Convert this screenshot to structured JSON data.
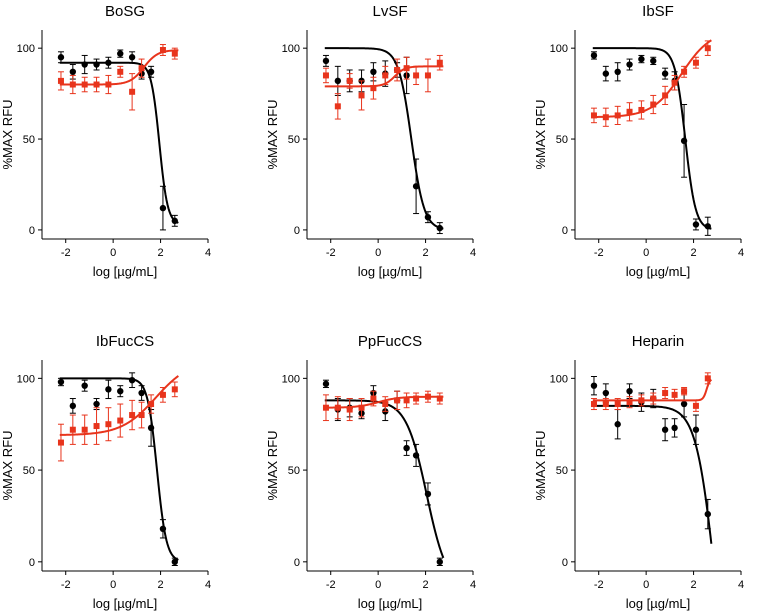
{
  "figure": {
    "colors": {
      "black": "#000000",
      "red": "#e8341c"
    },
    "x_ticks": [
      "-2",
      "0",
      "2",
      "4"
    ],
    "y_ticks": [
      "0",
      "50",
      "100"
    ]
  },
  "chart_data": [
    {
      "type": "scatter",
      "title": "BoSG",
      "xlabel": "log [µg/mL]",
      "ylabel": "%MAX RFU",
      "xlim": [
        -3,
        4
      ],
      "ylim": [
        -5,
        110
      ],
      "series": [
        {
          "color": "#000000",
          "marker": "circle",
          "x": [
            -2.2,
            -1.7,
            -1.2,
            -0.7,
            -0.2,
            0.3,
            0.8,
            1.2,
            1.6,
            2.1,
            2.6
          ],
          "y": [
            95,
            87,
            91,
            91,
            92,
            97,
            95,
            86,
            87,
            12,
            5
          ],
          "err": [
            3,
            4,
            5,
            3,
            3,
            2,
            3,
            3,
            3,
            12,
            3
          ],
          "fit": {
            "top": 92,
            "bottom": 3,
            "ec50": 1.95,
            "hill": 2.5
          }
        },
        {
          "color": "#e8341c",
          "marker": "square",
          "x": [
            -2.2,
            -1.7,
            -1.2,
            -0.7,
            -0.2,
            0.3,
            0.8,
            1.2,
            2.1,
            2.6
          ],
          "y": [
            82,
            80,
            80,
            80,
            80,
            87,
            76,
            89,
            99,
            97
          ],
          "err": [
            5,
            5,
            4,
            4,
            5,
            3,
            10,
            5,
            3,
            3
          ],
          "fit": {
            "top": 99,
            "bottom": 80,
            "ec50": 1.3,
            "hill": 1.5
          }
        }
      ]
    },
    {
      "type": "scatter",
      "title": "LvSF",
      "xlabel": "log [µg/mL]",
      "ylabel": "%MAX RFU",
      "xlim": [
        -3,
        4
      ],
      "ylim": [
        -5,
        110
      ],
      "series": [
        {
          "color": "#000000",
          "marker": "circle",
          "x": [
            -2.2,
            -1.7,
            -1.2,
            -0.7,
            -0.2,
            0.3,
            0.8,
            1.2,
            1.6,
            2.1,
            2.6
          ],
          "y": [
            93,
            82,
            82,
            82,
            87,
            86,
            88,
            85,
            24,
            7,
            1
          ],
          "err": [
            3,
            8,
            6,
            6,
            5,
            7,
            4,
            10,
            15,
            3,
            3
          ],
          "fit": {
            "top": 100,
            "bottom": 0,
            "ec50": 1.4,
            "hill": 1.6
          }
        },
        {
          "color": "#e8341c",
          "marker": "square",
          "x": [
            -2.2,
            -1.7,
            -1.2,
            -0.7,
            -0.2,
            0.3,
            0.8,
            1.2,
            1.6,
            2.1,
            2.6
          ],
          "y": [
            85,
            68,
            82,
            74,
            78,
            85,
            88,
            89,
            85,
            85,
            92
          ],
          "err": [
            4,
            7,
            4,
            8,
            6,
            5,
            6,
            6,
            5,
            9,
            4
          ],
          "fit": {
            "top": 90,
            "bottom": 79,
            "ec50": 0.7,
            "hill": 2
          }
        }
      ]
    },
    {
      "type": "scatter",
      "title": "IbSF",
      "xlabel": "log [µg/mL]",
      "ylabel": "%MAX RFU",
      "xlim": [
        -3,
        4
      ],
      "ylim": [
        -5,
        110
      ],
      "series": [
        {
          "color": "#000000",
          "marker": "circle",
          "x": [
            -2.2,
            -1.7,
            -1.2,
            -0.7,
            -0.2,
            0.3,
            0.8,
            1.2,
            1.6,
            2.1,
            2.6
          ],
          "y": [
            96,
            86,
            87,
            91,
            94,
            93,
            86,
            82,
            49,
            3,
            2
          ],
          "err": [
            2,
            4,
            5,
            3,
            2,
            2,
            3,
            5,
            20,
            3,
            5
          ],
          "fit": {
            "top": 100,
            "bottom": 0,
            "ec50": 1.65,
            "hill": 2
          }
        },
        {
          "color": "#e8341c",
          "marker": "square",
          "x": [
            -2.2,
            -1.7,
            -1.2,
            -0.7,
            -0.2,
            0.3,
            0.8,
            1.2,
            1.6,
            2.1,
            2.6
          ],
          "y": [
            63,
            62,
            63,
            65,
            66,
            69,
            74,
            81,
            87,
            92,
            100
          ],
          "err": [
            4,
            5,
            5,
            5,
            5,
            5,
            5,
            4,
            3,
            3,
            4
          ],
          "fit": {
            "top": 110,
            "bottom": 62,
            "ec50": 1.5,
            "hill": 0.7
          }
        }
      ]
    },
    {
      "type": "scatter",
      "title": "IbFucCS",
      "xlabel": "log [µg/mL]",
      "ylabel": "%MAX RFU",
      "xlim": [
        -3,
        4
      ],
      "ylim": [
        -5,
        110
      ],
      "series": [
        {
          "color": "#000000",
          "marker": "circle",
          "x": [
            -2.2,
            -1.7,
            -1.2,
            -0.7,
            -0.2,
            0.3,
            0.8,
            1.2,
            1.6,
            2.1,
            2.6
          ],
          "y": [
            98,
            85,
            96,
            86,
            94,
            93,
            99,
            92,
            73,
            18,
            0
          ],
          "err": [
            2,
            4,
            3,
            3,
            5,
            3,
            4,
            4,
            10,
            5,
            2
          ],
          "fit": {
            "top": 100,
            "bottom": 0,
            "ec50": 1.85,
            "hill": 2.2
          }
        },
        {
          "color": "#e8341c",
          "marker": "square",
          "x": [
            -2.2,
            -1.7,
            -1.2,
            -0.7,
            -0.2,
            0.3,
            0.8,
            1.2,
            1.6,
            2.1,
            2.6
          ],
          "y": [
            65,
            72,
            72,
            74,
            75,
            77,
            80,
            80,
            86,
            91,
            94
          ],
          "err": [
            10,
            8,
            8,
            10,
            9,
            9,
            8,
            7,
            5,
            4,
            4
          ],
          "fit": {
            "top": 110,
            "bottom": 69,
            "ec50": 1.8,
            "hill": 0.6
          }
        }
      ]
    },
    {
      "type": "scatter",
      "title": "PpFucCS",
      "xlabel": "log [µg/mL]",
      "ylabel": "%MAX RFU",
      "xlim": [
        -3,
        4
      ],
      "ylim": [
        -5,
        110
      ],
      "series": [
        {
          "color": "#000000",
          "marker": "circle",
          "x": [
            -2.2,
            -1.7,
            -1.2,
            -0.7,
            -0.2,
            0.3,
            0.8,
            1.2,
            1.6,
            2.1,
            2.6
          ],
          "y": [
            97,
            83,
            84,
            81,
            92,
            82,
            88,
            62,
            58,
            37,
            0
          ],
          "err": [
            2,
            6,
            5,
            3,
            4,
            5,
            5,
            4,
            6,
            6,
            2
          ],
          "fit": {
            "top": 88,
            "bottom": -15,
            "ec50": 2.05,
            "hill": 1
          }
        },
        {
          "color": "#e8341c",
          "marker": "square",
          "x": [
            -2.2,
            -1.7,
            -1.2,
            -0.7,
            -0.2,
            0.3,
            0.8,
            1.2,
            1.6,
            2.1,
            2.6
          ],
          "y": [
            84,
            84,
            83,
            84,
            89,
            86,
            88,
            88,
            89,
            90,
            89
          ],
          "err": [
            7,
            6,
            6,
            5,
            4,
            4,
            5,
            4,
            3,
            3,
            3
          ],
          "fit": {
            "top": 90,
            "bottom": 84,
            "ec50": 0,
            "hill": 1
          }
        }
      ]
    },
    {
      "type": "scatter",
      "title": "Heparin",
      "xlabel": "log [µg/mL]",
      "ylabel": "%MAX RFU",
      "xlim": [
        -3,
        4
      ],
      "ylim": [
        -5,
        110
      ],
      "series": [
        {
          "color": "#000000",
          "marker": "circle",
          "x": [
            -2.2,
            -1.7,
            -1.2,
            -0.7,
            -0.2,
            0.3,
            0.8,
            1.2,
            1.6,
            2.1,
            2.6
          ],
          "y": [
            96,
            92,
            75,
            93,
            87,
            89,
            72,
            73,
            86,
            72,
            26
          ],
          "err": [
            5,
            5,
            8,
            4,
            5,
            5,
            6,
            5,
            7,
            8,
            8
          ],
          "fit": {
            "top": 85,
            "bottom": -100,
            "ec50": 2.9,
            "hill": 1.1
          }
        },
        {
          "color": "#e8341c",
          "marker": "square",
          "x": [
            -2.2,
            -1.7,
            -1.2,
            -0.7,
            -0.2,
            0.3,
            0.8,
            1.2,
            1.6,
            2.1,
            2.6
          ],
          "y": [
            86,
            86,
            86,
            87,
            88,
            89,
            92,
            91,
            93,
            85,
            100
          ],
          "err": [
            3,
            3,
            3,
            3,
            3,
            3,
            3,
            3,
            2,
            3,
            3
          ],
          "fit": {
            "top": 100,
            "bottom": 88,
            "ec50": 2.55,
            "hill": 6
          }
        }
      ]
    }
  ]
}
